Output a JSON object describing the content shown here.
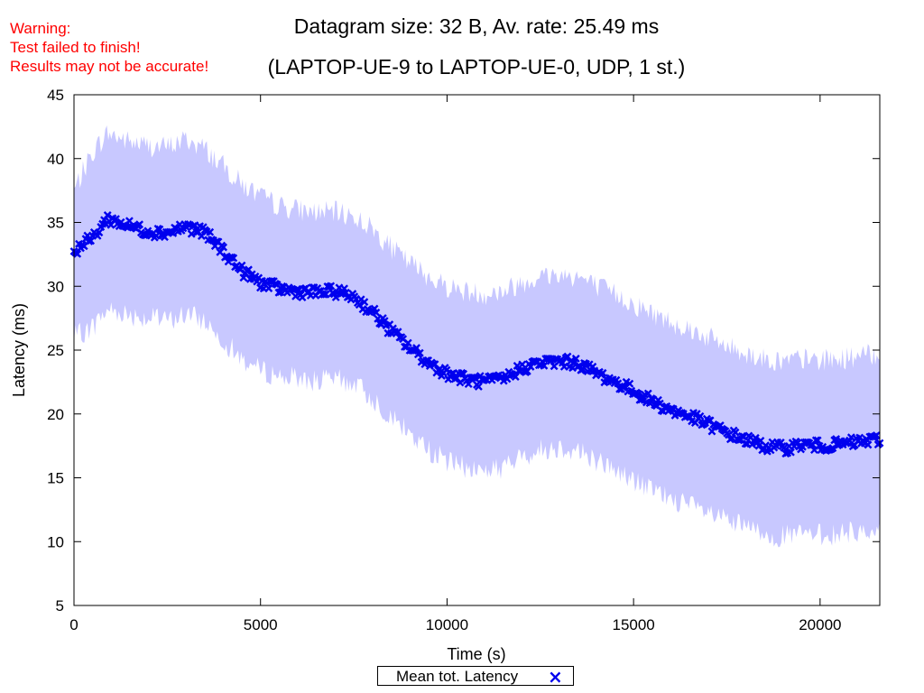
{
  "warning": {
    "line1": "Warning:",
    "line2": "Test failed to finish!",
    "line3": "Results may not be accurate!",
    "color": "#ff0000"
  },
  "chart_data": {
    "type": "scatter",
    "title": "Datagram size: 32 B, Av. rate: 25.49 ms",
    "subtitle": "(LAPTOP-UE-9 to LAPTOP-UE-0, UDP, 1 st.)",
    "xlabel": "Time (s)",
    "ylabel": "Latency (ms)",
    "xlim": [
      0,
      21600
    ],
    "ylim": [
      5,
      45
    ],
    "xticks": [
      0,
      5000,
      10000,
      15000,
      20000
    ],
    "yticks": [
      5,
      10,
      15,
      20,
      25,
      30,
      35,
      40,
      45
    ],
    "grid": false,
    "legend_position": "bottom-center",
    "band_color": "#c8c8ff",
    "marker_color": "#0000ee",
    "series": [
      {
        "name": "Mean tot. Latency",
        "marker": "x",
        "x": [
          0,
          500,
          900,
          1500,
          2000,
          2500,
          3000,
          3500,
          4000,
          4500,
          5000,
          5500,
          6000,
          6500,
          7000,
          7500,
          8000,
          8500,
          9000,
          9500,
          10000,
          10500,
          11000,
          11500,
          12000,
          12500,
          13000,
          13500,
          14000,
          14500,
          15000,
          15500,
          16000,
          16500,
          17000,
          17500,
          18000,
          18500,
          19000,
          19500,
          20000,
          20500,
          21000,
          21600
        ],
        "y": [
          32.8,
          33.8,
          35.3,
          34.7,
          34.3,
          34.2,
          34.7,
          34.2,
          32.8,
          31.2,
          30.3,
          29.8,
          29.6,
          29.5,
          29.6,
          29.2,
          28.0,
          26.5,
          25.2,
          24.0,
          23.2,
          22.7,
          22.5,
          22.7,
          23.6,
          24.0,
          24.1,
          24.0,
          23.2,
          22.5,
          21.8,
          21.0,
          20.3,
          19.8,
          19.2,
          18.5,
          18.0,
          17.5,
          17.3,
          17.6,
          17.5,
          17.6,
          17.8,
          18.0
        ]
      }
    ],
    "band": {
      "x": [
        0,
        500,
        900,
        1500,
        2000,
        2500,
        3000,
        3500,
        4000,
        4500,
        5000,
        5500,
        6000,
        6500,
        7000,
        7500,
        8000,
        8500,
        9000,
        9500,
        10000,
        10500,
        11000,
        11500,
        12000,
        12500,
        13000,
        13500,
        14000,
        14500,
        15000,
        15500,
        16000,
        16500,
        17000,
        17500,
        18000,
        18500,
        19000,
        19500,
        20000,
        20500,
        21000,
        21600
      ],
      "upper": [
        37.5,
        40.5,
        42.0,
        41.3,
        41.0,
        40.9,
        41.5,
        40.8,
        39.4,
        38.0,
        37.0,
        36.3,
        36.0,
        35.8,
        35.8,
        35.5,
        34.5,
        33.0,
        31.8,
        30.8,
        30.0,
        29.6,
        29.4,
        29.6,
        30.3,
        30.8,
        30.9,
        30.8,
        30.0,
        29.4,
        28.6,
        27.9,
        27.2,
        26.7,
        26.0,
        25.3,
        24.8,
        24.3,
        24.1,
        24.3,
        24.2,
        24.3,
        24.5,
        24.7
      ],
      "lower": [
        26.0,
        26.8,
        28.2,
        27.8,
        27.5,
        27.3,
        27.8,
        27.3,
        25.8,
        24.3,
        23.4,
        23.0,
        22.8,
        22.6,
        22.7,
        22.4,
        21.2,
        19.8,
        18.4,
        17.2,
        16.3,
        15.8,
        15.6,
        15.8,
        16.6,
        17.2,
        17.4,
        17.2,
        16.4,
        15.6,
        14.8,
        14.0,
        13.4,
        12.8,
        12.2,
        11.6,
        11.1,
        10.6,
        10.4,
        10.6,
        10.5,
        10.6,
        10.8,
        11.0
      ]
    }
  }
}
